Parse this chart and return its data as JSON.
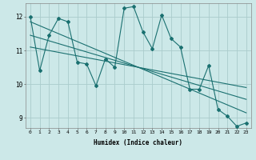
{
  "xlabel": "Humidex (Indice chaleur)",
  "ylabel": "",
  "bg_color": "#cce8e8",
  "grid_color": "#aacccc",
  "line_color": "#1a7070",
  "xlim": [
    -0.5,
    23.5
  ],
  "ylim": [
    8.7,
    12.4
  ],
  "xticks": [
    0,
    1,
    2,
    3,
    4,
    5,
    6,
    7,
    8,
    9,
    10,
    11,
    12,
    13,
    14,
    15,
    16,
    17,
    18,
    19,
    20,
    21,
    22,
    23
  ],
  "yticks": [
    9,
    10,
    11,
    12
  ],
  "main_x": [
    0,
    1,
    2,
    3,
    4,
    5,
    6,
    7,
    8,
    9,
    10,
    11,
    12,
    13,
    14,
    15,
    16,
    17,
    18,
    19,
    20,
    21,
    22,
    23
  ],
  "main_y": [
    12.0,
    10.4,
    11.45,
    11.95,
    11.85,
    10.65,
    10.6,
    9.95,
    10.75,
    10.5,
    12.25,
    12.3,
    11.55,
    11.05,
    12.05,
    11.35,
    11.1,
    9.85,
    9.85,
    10.55,
    9.25,
    9.05,
    8.75,
    8.85
  ],
  "trend1_x": [
    0,
    23
  ],
  "trend1_y": [
    11.85,
    9.15
  ],
  "trend2_x": [
    0,
    23
  ],
  "trend2_y": [
    11.45,
    9.55
  ],
  "trend3_x": [
    0,
    23
  ],
  "trend3_y": [
    11.1,
    9.9
  ]
}
